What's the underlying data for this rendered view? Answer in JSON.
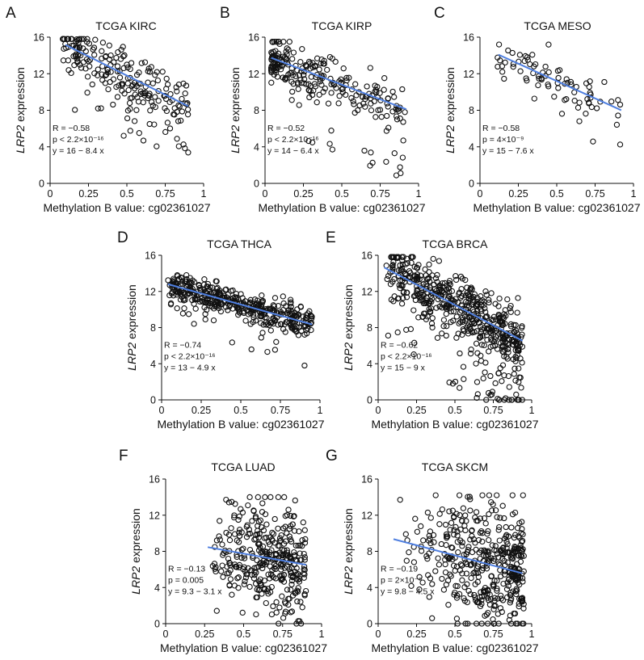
{
  "figure": {
    "x_axis_label": "Methylation B value: cg02361027"
  },
  "chart_data": [
    {
      "letter": "A",
      "title": "TCGA KIRC",
      "type": "scatter",
      "xlabel": "Methylation B value: cg02361027",
      "ylabel_italic": "LRP2",
      "ylabel_rest": " expression",
      "xlim": [
        0,
        1
      ],
      "ylim": [
        0,
        16
      ],
      "xticks": [
        0,
        0.25,
        0.5,
        0.75,
        1
      ],
      "xtick_labels": [
        "0",
        "0.25",
        "0.5",
        "0.75",
        "1"
      ],
      "yticks": [
        0,
        4,
        8,
        12,
        16
      ],
      "ytick_labels": [
        "0",
        "4",
        "8",
        "12",
        "16"
      ],
      "stats": {
        "r": "R = −0.58",
        "p": "p < 2.2×10⁻¹⁶",
        "eq": "y = 16 − 8.4 x"
      },
      "fit": {
        "intercept": 16,
        "slope": -8.4,
        "x_range": [
          0.1,
          0.9
        ]
      },
      "points": {
        "n": 220,
        "x_range": [
          0.08,
          0.9
        ],
        "x_skew": 1.1,
        "resid_sd": 1.3,
        "outlier_frac": 0.22,
        "outlier_depth": 7,
        "y_cap": 15.8,
        "seed": 11
      }
    },
    {
      "letter": "B",
      "title": "TCGA KIRP",
      "type": "scatter",
      "xlabel": "Methylation B value: cg02361027",
      "ylabel_italic": "LRP2",
      "ylabel_rest": " expression",
      "xlim": [
        0,
        1
      ],
      "ylim": [
        0,
        16
      ],
      "xticks": [
        0,
        0.25,
        0.5,
        0.75,
        1
      ],
      "xtick_labels": [
        "0",
        "0.25",
        "0.5",
        "0.75",
        "1"
      ],
      "yticks": [
        0,
        4,
        8,
        12,
        16
      ],
      "ytick_labels": [
        "0",
        "4",
        "8",
        "12",
        "16"
      ],
      "stats": {
        "r": "R = −0.52",
        "p": "p < 2.2×10⁻¹⁶",
        "eq": "y = 14 − 6.4 x"
      },
      "fit": {
        "intercept": 14,
        "slope": -6.4,
        "x_range": [
          0.04,
          0.92
        ]
      },
      "points": {
        "n": 250,
        "x_range": [
          0.04,
          0.92
        ],
        "x_skew": 1.6,
        "resid_sd": 1.1,
        "outlier_frac": 0.16,
        "outlier_depth": 8,
        "y_cap": 15.5,
        "seed": 23
      }
    },
    {
      "letter": "C",
      "title": "TCGA MESO",
      "type": "scatter",
      "xlabel": "Methylation B value: cg02361027",
      "ylabel_italic": "LRP2",
      "ylabel_rest": " expression",
      "xlim": [
        0,
        1
      ],
      "ylim": [
        0,
        16
      ],
      "xticks": [
        0,
        0.25,
        0.5,
        0.75,
        1
      ],
      "xtick_labels": [
        "0",
        "0.25",
        "0.5",
        "0.75",
        "1"
      ],
      "yticks": [
        0,
        4,
        8,
        12,
        16
      ],
      "ytick_labels": [
        "0",
        "4",
        "8",
        "12",
        "16"
      ],
      "stats": {
        "r": "R = −0.58",
        "p": "p = 4×10⁻⁹",
        "eq": "y = 15 − 7.6 x"
      },
      "fit": {
        "intercept": 15,
        "slope": -7.6,
        "x_range": [
          0.12,
          0.92
        ]
      },
      "points": {
        "n": 80,
        "x_range": [
          0.1,
          0.92
        ],
        "x_skew": 0.9,
        "resid_sd": 1.3,
        "outlier_frac": 0.15,
        "outlier_depth": 5,
        "y_cap": 15.2,
        "seed": 37
      }
    },
    {
      "letter": "D",
      "title": "TCGA THCA",
      "type": "scatter",
      "xlabel": "Methylation B value: cg02361027",
      "ylabel_italic": "LRP2",
      "ylabel_rest": " expression",
      "xlim": [
        0,
        1
      ],
      "ylim": [
        0,
        16
      ],
      "xticks": [
        0,
        0.25,
        0.5,
        0.75,
        1
      ],
      "xtick_labels": [
        "0",
        "0.25",
        "0.5",
        "0.75",
        "1"
      ],
      "yticks": [
        0,
        4,
        8,
        12,
        16
      ],
      "ytick_labels": [
        "0",
        "4",
        "8",
        "12",
        "16"
      ],
      "stats": {
        "r": "R = −0.74",
        "p": "p < 2.2×10⁻¹⁶",
        "eq": "y = 13 − 4.9 x"
      },
      "fit": {
        "intercept": 13,
        "slope": -4.9,
        "x_range": [
          0.04,
          0.95
        ]
      },
      "points": {
        "n": 420,
        "x_range": [
          0.04,
          0.95
        ],
        "x_skew": 1.0,
        "resid_sd": 0.9,
        "outlier_frac": 0.05,
        "outlier_depth": 5,
        "y_cap": 13.8,
        "seed": 41
      }
    },
    {
      "letter": "E",
      "title": "TCGA BRCA",
      "type": "scatter",
      "xlabel": "Methylation B value: cg02361027",
      "ylabel_italic": "LRP2",
      "ylabel_rest": " expression",
      "xlim": [
        0,
        1
      ],
      "ylim": [
        0,
        16
      ],
      "xticks": [
        0,
        0.25,
        0.5,
        0.75,
        1
      ],
      "xtick_labels": [
        "0",
        "0.25",
        "0.5",
        "0.75",
        "1"
      ],
      "yticks": [
        0,
        4,
        8,
        12,
        16
      ],
      "ytick_labels": [
        "0",
        "4",
        "8",
        "12",
        "16"
      ],
      "stats": {
        "r": "R = −0.62",
        "p": "p < 2.2×10⁻¹⁶",
        "eq": "y = 15 − 9 x"
      },
      "fit": {
        "intercept": 15,
        "slope": -9,
        "x_range": [
          0.04,
          0.94
        ]
      },
      "points": {
        "n": 560,
        "x_range": [
          0.04,
          0.94
        ],
        "x_skew": 0.75,
        "resid_sd": 1.6,
        "outlier_frac": 0.22,
        "outlier_depth": 9,
        "y_cap": 15.8,
        "seed": 53
      }
    },
    {
      "letter": "F",
      "title": "TCGA LUAD",
      "type": "scatter",
      "xlabel": "Methylation B value: cg02361027",
      "ylabel_italic": "LRP2",
      "ylabel_rest": " expression",
      "xlim": [
        0,
        1
      ],
      "ylim": [
        0,
        16
      ],
      "xticks": [
        0,
        0.25,
        0.5,
        0.75,
        1
      ],
      "xtick_labels": [
        "0",
        "0.25",
        "0.5",
        "0.75",
        "1"
      ],
      "yticks": [
        0,
        4,
        8,
        12,
        16
      ],
      "ytick_labels": [
        "0",
        "4",
        "8",
        "12",
        "16"
      ],
      "stats": {
        "r": "R = −0.13",
        "p": "p = 0.005",
        "eq": "y = 9.3 − 3.1 x"
      },
      "fit": {
        "intercept": 9.3,
        "slope": -3.1,
        "x_range": [
          0.27,
          0.9
        ]
      },
      "points": {
        "n": 360,
        "x_range": [
          0.3,
          0.9
        ],
        "x_skew": 0.7,
        "resid_sd": 2.9,
        "outlier_frac": 0.04,
        "outlier_depth": 4,
        "y_cap": 14,
        "seed": 67
      }
    },
    {
      "letter": "G",
      "title": "TCGA SKCM",
      "type": "scatter",
      "xlabel": "Methylation B value: cg02361027",
      "ylabel_italic": "LRP2",
      "ylabel_rest": " expression",
      "xlim": [
        0,
        1
      ],
      "ylim": [
        0,
        16
      ],
      "xticks": [
        0,
        0.25,
        0.5,
        0.75,
        1
      ],
      "xtick_labels": [
        "0",
        "0.25",
        "0.5",
        "0.75",
        "1"
      ],
      "yticks": [
        0,
        4,
        8,
        12,
        16
      ],
      "ytick_labels": [
        "0",
        "4",
        "8",
        "12",
        "16"
      ],
      "stats": {
        "r": "R = −0.19",
        "p": "p = 2×10⁻⁵",
        "eq": "y = 9.8 − 4.5 x"
      },
      "fit": {
        "intercept": 9.8,
        "slope": -4.5,
        "x_range": [
          0.1,
          0.94
        ]
      },
      "points": {
        "n": 440,
        "x_range": [
          0.1,
          0.95
        ],
        "x_skew": 0.45,
        "resid_sd": 3.4,
        "outlier_frac": 0.05,
        "outlier_depth": 4,
        "y_cap": 14.2,
        "seed": 79
      }
    }
  ]
}
